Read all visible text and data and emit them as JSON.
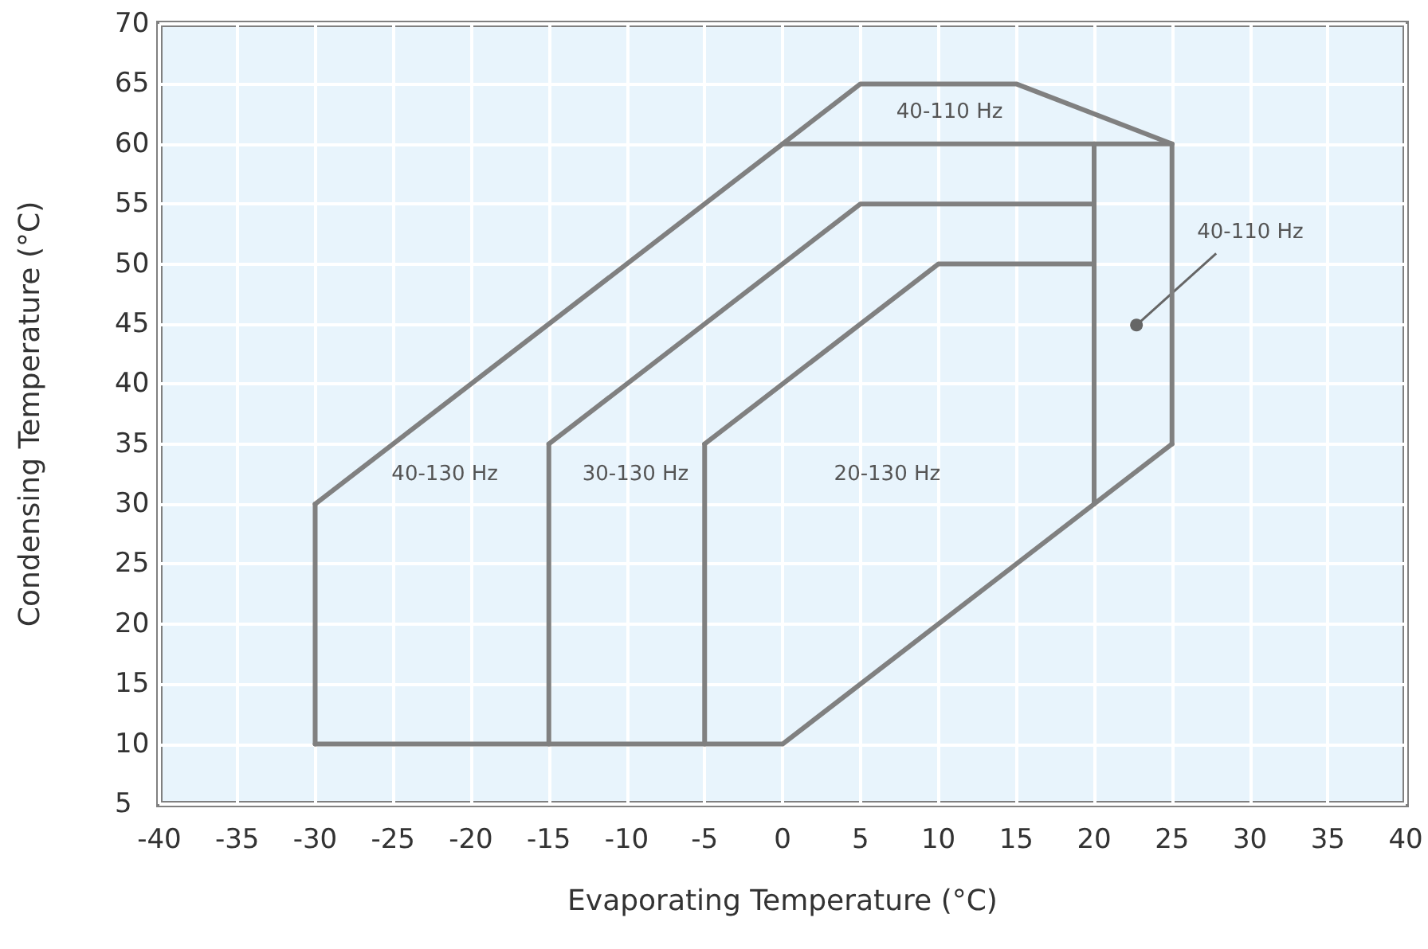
{
  "chart_data": {
    "type": "line",
    "xlabel": "Evaporating Temperature (°C)",
    "ylabel": "Condensing Temperature (°C)",
    "series": [
      {
        "color": "#808080",
        "x": [
          -30,
          0,
          5,
          15,
          25
        ],
        "values": [
          30,
          60,
          65,
          65,
          60
        ]
      },
      {
        "color": "#808080",
        "x": [
          -30,
          0,
          25
        ],
        "values": [
          10,
          10,
          35
        ]
      },
      {
        "color": "#808080",
        "x": [
          0,
          25
        ],
        "values": [
          60,
          60
        ]
      },
      {
        "color": "#808080",
        "x": [
          -15,
          5,
          20
        ],
        "values": [
          35,
          55,
          55
        ]
      },
      {
        "color": "#808080",
        "x": [
          -5,
          10,
          20
        ],
        "values": [
          35,
          50,
          50
        ]
      },
      {
        "color": "#808080",
        "x": [
          -30,
          -30
        ],
        "values": [
          10,
          30
        ]
      },
      {
        "color": "#808080",
        "x": [
          -15,
          -15
        ],
        "values": [
          10,
          35
        ]
      },
      {
        "color": "#808080",
        "x": [
          -5,
          -5
        ],
        "values": [
          10,
          35
        ]
      },
      {
        "color": "#808080",
        "x": [
          20,
          20
        ],
        "values": [
          30,
          60
        ]
      },
      {
        "color": "#808080",
        "x": [
          25,
          25
        ],
        "values": [
          35,
          60
        ]
      }
    ],
    "annotations": [
      "40-110 Hz",
      "40-130 Hz",
      "30-130 Hz",
      "20-130 Hz",
      "40-110 Hz"
    ],
    "xlim": [
      -40,
      40
    ],
    "xticks": [
      -40,
      -35,
      -30,
      -25,
      -20,
      -15,
      -10,
      -5,
      0,
      5,
      10,
      15,
      20,
      25,
      30,
      35,
      40
    ],
    "ylim": [
      5,
      70
    ],
    "yticks": [
      5,
      10,
      15,
      20,
      25,
      30,
      35,
      40,
      45,
      50,
      55,
      60,
      65,
      70
    ],
    "grid": true,
    "marker": "none",
    "line_style": "solid"
  }
}
